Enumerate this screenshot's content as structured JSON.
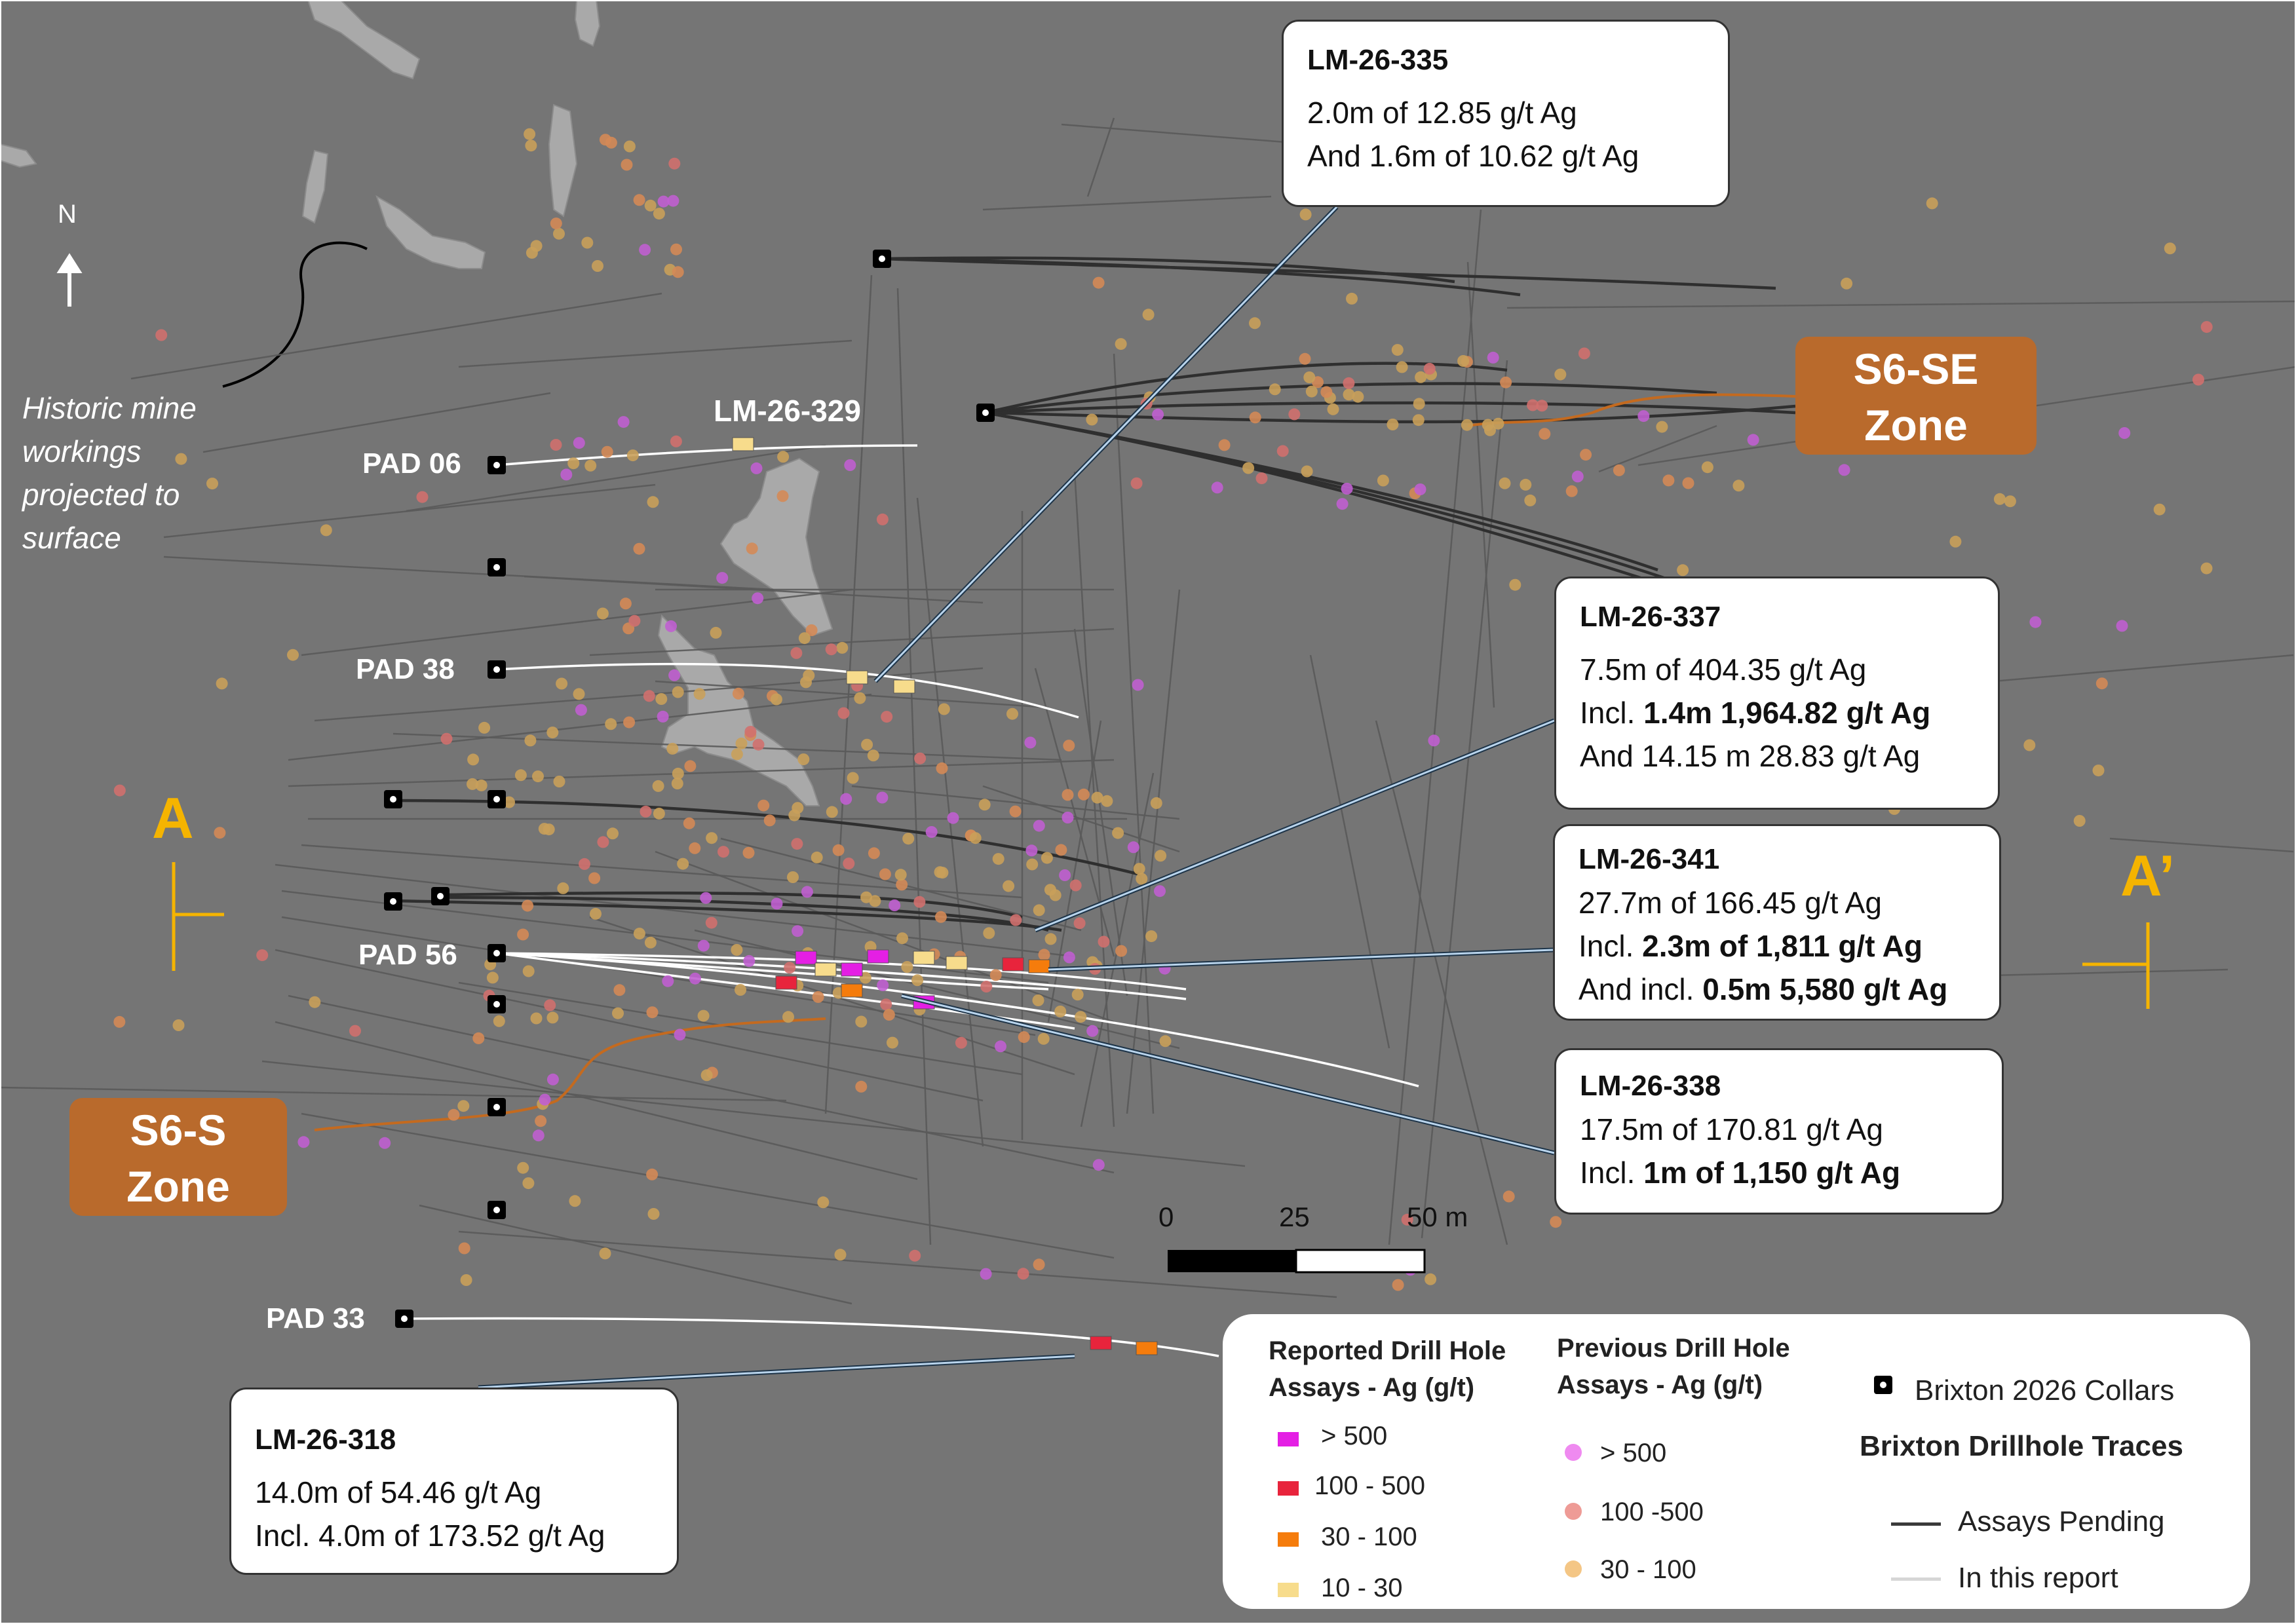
{
  "map": {
    "north_label": "N",
    "historic_label": "Historic mine workings projected to surface",
    "pads": [
      "PAD 06",
      "PAD 38",
      "PAD 56",
      "PAD 33"
    ],
    "hole_labels": [
      "LM-26-329"
    ],
    "zones": [
      {
        "name": "S6-SE",
        "line2": "Zone",
        "color": "#b96a2c"
      },
      {
        "name": "S6-S",
        "line2": "Zone",
        "color": "#b96a2c"
      }
    ],
    "section": {
      "start": "A",
      "end": "A’",
      "color": "#f5b400"
    },
    "scale": {
      "ticks": [
        "0",
        "25",
        "50 m"
      ]
    }
  },
  "callouts": [
    {
      "title": "LM-26-335",
      "lines": [
        [
          {
            "t": "2.0m of 12.85 g/t Ag",
            "b": false
          }
        ],
        [
          {
            "t": "And 1.6m of 10.62 g/t Ag",
            "b": false
          }
        ]
      ]
    },
    {
      "title": "LM-26-337",
      "lines": [
        [
          {
            "t": "7.5m of 404.35 g/t Ag",
            "b": false
          }
        ],
        [
          {
            "t": "Incl. ",
            "b": false
          },
          {
            "t": "1.4m 1,964.82 g/t Ag",
            "b": true
          }
        ],
        [
          {
            "t": "And 14.15 m 28.83 g/t Ag",
            "b": false
          }
        ]
      ]
    },
    {
      "title": "LM-26-341",
      "lines": [
        [
          {
            "t": "27.7m of 166.45 g/t Ag",
            "b": false
          }
        ],
        [
          {
            "t": "Incl. ",
            "b": false
          },
          {
            "t": "2.3m of 1,811 g/t Ag",
            "b": true
          }
        ],
        [
          {
            "t": "And incl. ",
            "b": false
          },
          {
            "t": "0.5m 5,580 g/t Ag",
            "b": true
          }
        ]
      ]
    },
    {
      "title": "LM-26-338",
      "lines": [
        [
          {
            "t": "17.5m of 170.81 g/t Ag",
            "b": false
          }
        ],
        [
          {
            "t": "Incl. ",
            "b": false
          },
          {
            "t": "1m of 1,150 g/t Ag",
            "b": true
          }
        ]
      ]
    },
    {
      "title": "LM-26-318",
      "lines": [
        [
          {
            "t": "14.0m of 54.46 g/t Ag",
            "b": false
          }
        ],
        [
          {
            "t": "Incl. 4.0m of 173.52 g/t Ag",
            "b": false
          }
        ]
      ]
    }
  ],
  "legend": {
    "reported": {
      "title": [
        "Reported Drill Hole",
        "Assays - Ag (g/t)"
      ],
      "items": [
        {
          "label": "> 500",
          "color": "#e41fe4"
        },
        {
          "label": "100 - 500",
          "color": "#e8243c"
        },
        {
          "label": "30 - 100",
          "color": "#f57c0c"
        },
        {
          "label": "10 - 30",
          "color": "#f7dc8c"
        }
      ]
    },
    "previous": {
      "title": [
        "Previous Drill Hole",
        "Assays - Ag (g/t)"
      ],
      "items": [
        {
          "label": "> 500",
          "color": "#ef8af0"
        },
        {
          "label": "100 -500",
          "color": "#ee9b96"
        },
        {
          "label": "30 - 100",
          "color": "#f4c685"
        }
      ]
    },
    "collars_label": "Brixton 2026 Collars",
    "traces_title": "Brixton Drillhole Traces",
    "traces": [
      {
        "label": "Assays Pending",
        "color": "#3a3a3a"
      },
      {
        "label": "In this report",
        "color": "#d6d6d6"
      }
    ]
  }
}
